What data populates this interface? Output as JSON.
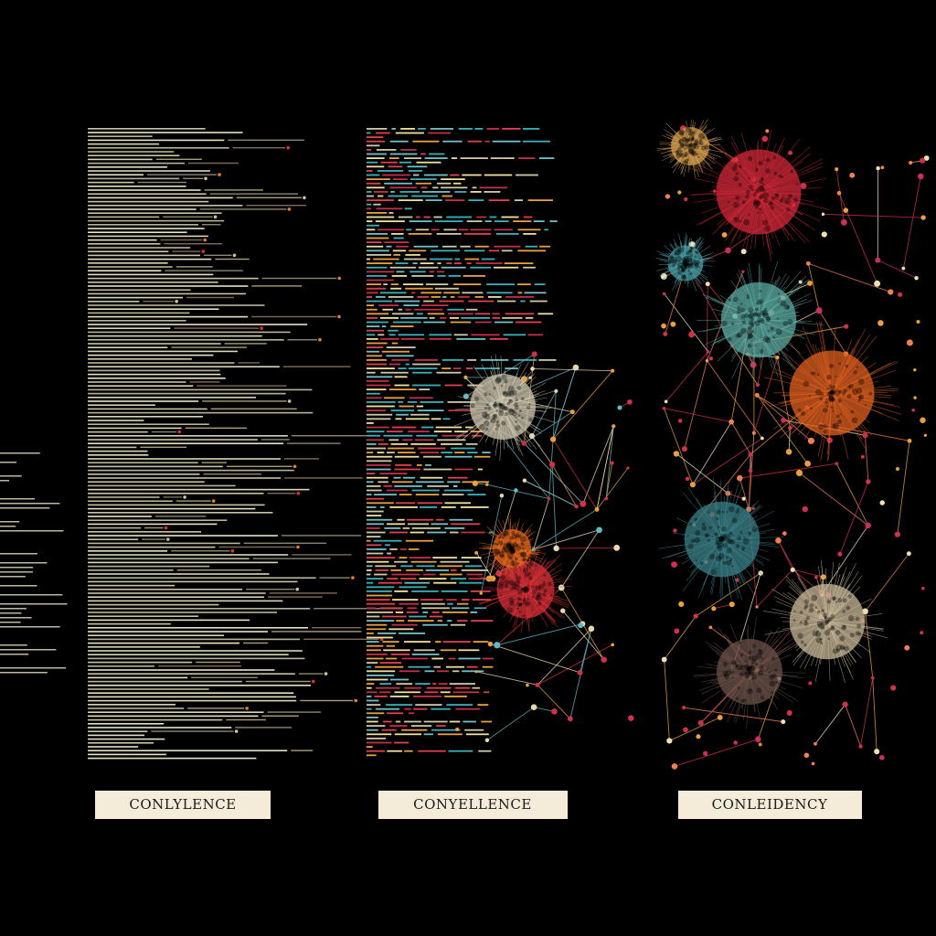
{
  "panels": [
    {
      "label": "CONLYLENCE"
    },
    {
      "label": "CONYELLENCE"
    },
    {
      "label": "CONLEIDENCY"
    }
  ]
}
